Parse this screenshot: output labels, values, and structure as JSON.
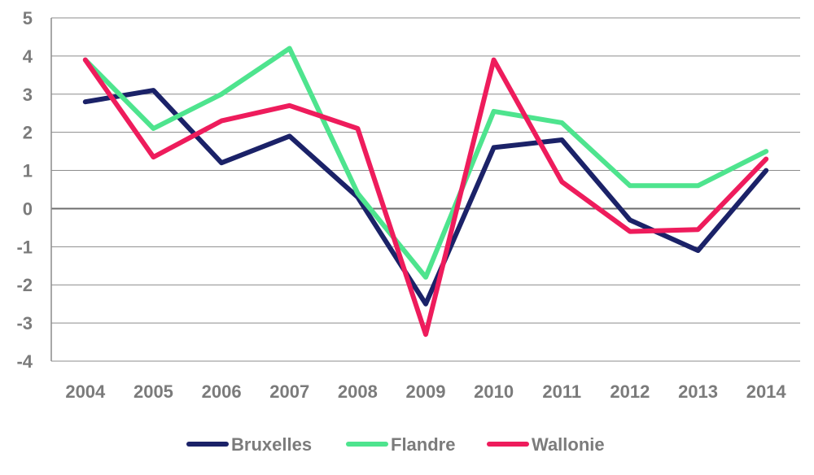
{
  "chart_data": {
    "type": "line",
    "title": "",
    "xlabel": "",
    "ylabel": "",
    "x": [
      "2004",
      "2005",
      "2006",
      "2007",
      "2008",
      "2009",
      "2010",
      "2011",
      "2012",
      "2013",
      "2014"
    ],
    "ylim": [
      -4,
      5
    ],
    "yticks": [
      "5",
      "4",
      "3",
      "2",
      "1",
      "0",
      "-1",
      "-2",
      "-3",
      "-4"
    ],
    "grid": true,
    "legend_position": "bottom",
    "series": [
      {
        "name": "Bruxelles",
        "color": "#1b2268",
        "values": [
          2.8,
          3.1,
          1.2,
          1.9,
          0.3,
          -2.5,
          1.6,
          1.8,
          -0.3,
          -1.1,
          1.0
        ]
      },
      {
        "name": "Flandre",
        "color": "#4ee48e",
        "values": [
          3.9,
          2.1,
          3.0,
          4.2,
          0.4,
          -1.8,
          2.55,
          2.25,
          0.6,
          0.6,
          1.5
        ]
      },
      {
        "name": "Wallonie",
        "color": "#ee1c5c",
        "values": [
          3.9,
          1.35,
          2.3,
          2.7,
          2.1,
          -3.3,
          3.9,
          0.7,
          -0.6,
          -0.55,
          1.3
        ]
      }
    ]
  }
}
